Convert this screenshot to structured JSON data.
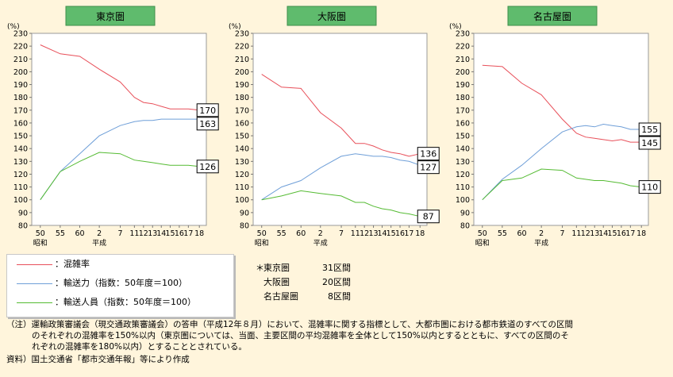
{
  "chart_data": [
    {
      "type": "line",
      "title": "東京圏",
      "ylabel": "(%)",
      "ylim": [
        80,
        230
      ],
      "yticks": [
        80,
        90,
        100,
        110,
        120,
        130,
        140,
        150,
        160,
        170,
        180,
        190,
        200,
        210,
        220,
        230
      ],
      "categories": [
        "50",
        "55",
        "60",
        "2",
        "7",
        "11",
        "12",
        "13",
        "14",
        "15",
        "16",
        "17",
        "18"
      ],
      "era_labels": [
        "昭和",
        "平成"
      ],
      "series": [
        {
          "name": "混雑率",
          "values": [
            221,
            214,
            212,
            202,
            192,
            180,
            176,
            175,
            173,
            171,
            171,
            171,
            170
          ],
          "end_label": "170"
        },
        {
          "name": "輸送力",
          "values": [
            100,
            122,
            136,
            150,
            158,
            161,
            162,
            162,
            163,
            163,
            163,
            163,
            163
          ],
          "end_label": "163"
        },
        {
          "name": "輸送人員",
          "values": [
            100,
            122,
            130,
            137,
            136,
            131,
            130,
            129,
            128,
            127,
            127,
            127,
            126
          ],
          "end_label": "126"
        }
      ]
    },
    {
      "type": "line",
      "title": "大阪圏",
      "ylabel": "(%)",
      "ylim": [
        80,
        230
      ],
      "yticks": [
        80,
        90,
        100,
        110,
        120,
        130,
        140,
        150,
        160,
        170,
        180,
        190,
        200,
        210,
        220,
        230
      ],
      "categories": [
        "50",
        "55",
        "60",
        "2",
        "7",
        "11",
        "12",
        "13",
        "14",
        "15",
        "16",
        "17",
        "18"
      ],
      "era_labels": [
        "昭和",
        "平成"
      ],
      "series": [
        {
          "name": "混雑率",
          "values": [
            198,
            188,
            187,
            168,
            156,
            144,
            144,
            142,
            139,
            137,
            136,
            134,
            136
          ],
          "end_label": "136"
        },
        {
          "name": "輸送力",
          "values": [
            100,
            110,
            115,
            125,
            134,
            136,
            135,
            134,
            134,
            133,
            131,
            130,
            127
          ],
          "end_label": "127"
        },
        {
          "name": "輸送人員",
          "values": [
            100,
            103,
            107,
            105,
            103,
            98,
            98,
            95,
            93,
            92,
            90,
            89,
            87
          ],
          "end_label": "87"
        }
      ]
    },
    {
      "type": "line",
      "title": "名古屋圏",
      "ylabel": "(%)",
      "ylim": [
        80,
        230
      ],
      "yticks": [
        80,
        90,
        100,
        110,
        120,
        130,
        140,
        150,
        160,
        170,
        180,
        190,
        200,
        210,
        220,
        230
      ],
      "categories": [
        "50",
        "55",
        "60",
        "2",
        "7",
        "11",
        "12",
        "13",
        "14",
        "15",
        "16",
        "17",
        "18"
      ],
      "era_labels": [
        "昭和",
        "平成"
      ],
      "series": [
        {
          "name": "混雑率",
          "values": [
            205,
            204,
            191,
            182,
            163,
            152,
            149,
            148,
            147,
            146,
            147,
            145,
            145
          ],
          "end_label": "145"
        },
        {
          "name": "輸送力",
          "values": [
            100,
            116,
            127,
            140,
            153,
            157,
            158,
            157,
            159,
            158,
            157,
            155,
            155
          ],
          "end_label": "155"
        },
        {
          "name": "輸送人員",
          "values": [
            100,
            115,
            117,
            124,
            123,
            117,
            116,
            115,
            115,
            114,
            113,
            111,
            110
          ],
          "end_label": "110"
        }
      ]
    }
  ],
  "colors": {
    "congestion": "#e8505a",
    "capacity": "#6f9fd8",
    "passengers": "#55bb33",
    "title_fill": "#5fbb6d",
    "plot_bg": "#ffffff"
  },
  "legend": {
    "items": [
      {
        "label": "：混雑率"
      },
      {
        "label": "：輸送力（指数：50年度＝100）"
      },
      {
        "label": "：輸送人員（指数：50年度＝100）"
      }
    ]
  },
  "sections": {
    "rows": [
      {
        "star": "＊",
        "name": "東京圏",
        "count": "31区間"
      },
      {
        "star": "",
        "name": "大阪圏",
        "count": "20区間"
      },
      {
        "star": "",
        "name": "名古屋圏",
        "count": "8区間"
      }
    ]
  },
  "notes": {
    "line1": "（注）運輸政策審議会（現交通政策審議会）の答申（平成12年８月）において、混雑率に関する指標として、大都市圏における都市鉄道のすべての区間",
    "line2": "のそれぞれの混雑率を150%以内（東京圏については、当面、主要区間の平均混雑率を全体として150%以内とするとともに、すべての区間のそ",
    "line3": "れぞれの混雑率を180%以内）とすることとされている。",
    "line4": "資料）国土交通省「都市交通年報」等により作成"
  }
}
